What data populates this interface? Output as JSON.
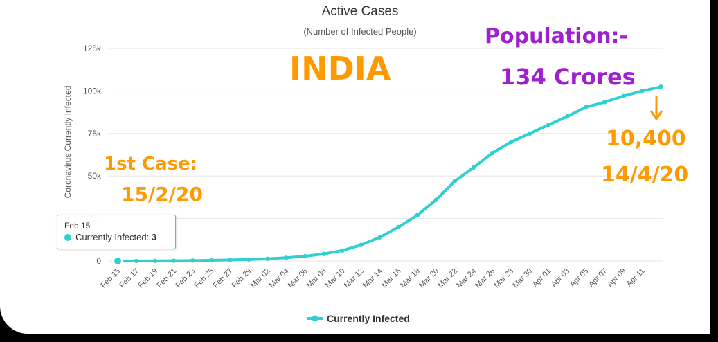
{
  "chart_data": {
    "type": "line",
    "title": "Active Cases",
    "subtitle": "(Number of Infected People)",
    "ylabel": "Coronavirus Currently Infected",
    "xlabel": "",
    "ylim": [
      0,
      125000
    ],
    "yticks": [
      {
        "value": 0,
        "label": "0"
      },
      {
        "value": 25000,
        "label": "25k"
      },
      {
        "value": 50000,
        "label": "50k"
      },
      {
        "value": 75000,
        "label": "75k"
      },
      {
        "value": 100000,
        "label": "100k"
      },
      {
        "value": 125000,
        "label": "125k"
      }
    ],
    "grid": true,
    "legend_position": "bottom-center",
    "x_tick_labels": [
      "Feb 15",
      "Feb 17",
      "Feb 19",
      "Feb 21",
      "Feb 23",
      "Feb 25",
      "Feb 27",
      "Feb 29",
      "Mar 02",
      "Mar 04",
      "Mar 06",
      "Mar 08",
      "Mar 10",
      "Mar 12",
      "Mar 14",
      "Mar 16",
      "Mar 18",
      "Mar 20",
      "Mar 22",
      "Mar 24",
      "Mar 26",
      "Mar 28",
      "Mar 30",
      "Apr 01",
      "Apr 03",
      "Apr 05",
      "Apr 07",
      "Apr 09",
      "Apr 11"
    ],
    "series": [
      {
        "name": "Currently Infected",
        "color": "#2fd0d0",
        "x_dates": [
          "Feb 15",
          "Feb 17",
          "Feb 19",
          "Feb 21",
          "Feb 23",
          "Feb 25",
          "Feb 27",
          "Feb 29",
          "Mar 02",
          "Mar 04",
          "Mar 06",
          "Mar 08",
          "Mar 10",
          "Mar 12",
          "Mar 14",
          "Mar 16",
          "Mar 18",
          "Mar 20",
          "Mar 22",
          "Mar 24",
          "Mar 26",
          "Mar 28",
          "Mar 30",
          "Apr 01",
          "Apr 03",
          "Apr 05",
          "Apr 07",
          "Apr 09",
          "Apr 11",
          "Apr 12"
        ],
        "values": [
          3,
          30,
          80,
          150,
          250,
          400,
          600,
          900,
          1300,
          1900,
          2800,
          4200,
          6200,
          9500,
          14000,
          20000,
          27000,
          36000,
          47000,
          55000,
          63500,
          70000,
          75000,
          80000,
          85000,
          90500,
          93500,
          97000,
          100000,
          102500
        ]
      }
    ],
    "tooltip": {
      "date": "Feb 15",
      "series": "Currently Infected",
      "value": "3"
    },
    "annotations": [
      {
        "text": "INDIA"
      },
      {
        "text": "Population:-"
      },
      {
        "text": "134 Crores"
      },
      {
        "text": "1st Case:"
      },
      {
        "text": "15/2/20"
      },
      {
        "text": "10,400"
      },
      {
        "text": "14/4/20"
      }
    ]
  }
}
